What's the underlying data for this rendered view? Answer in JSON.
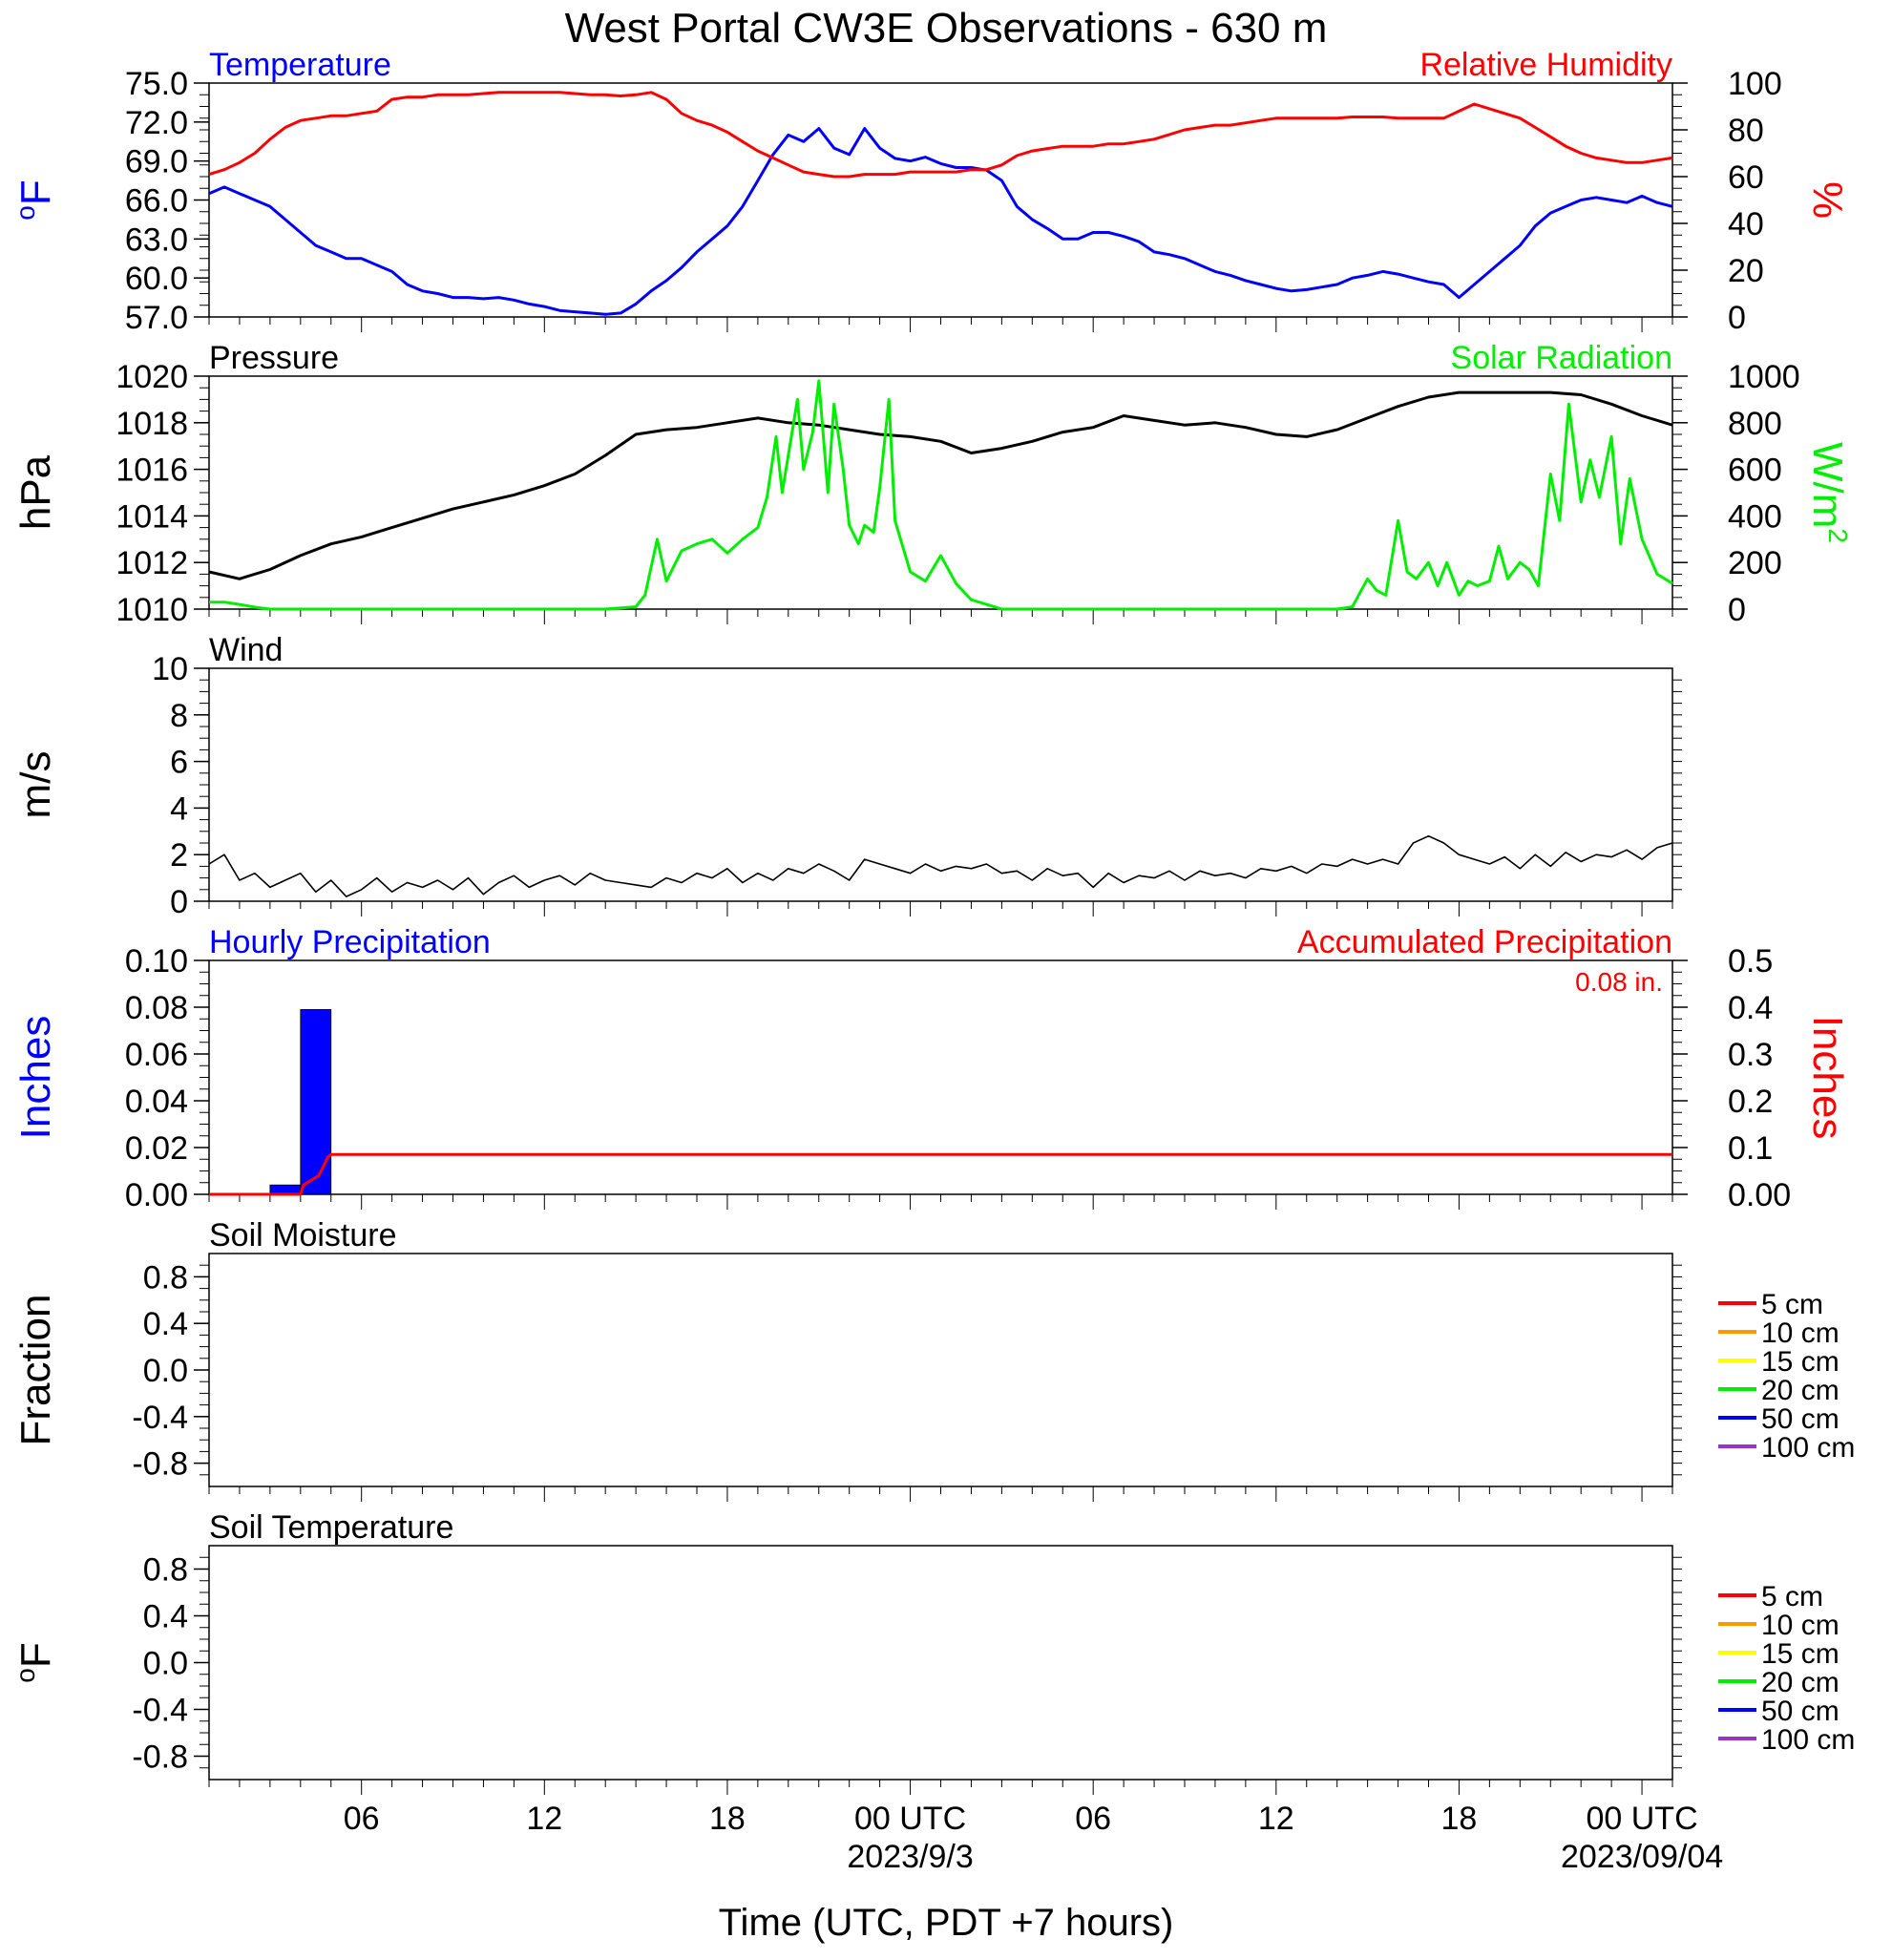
{
  "title": "West Portal CW3E Observations - 630 m",
  "colors": {
    "blue": "#0000ff",
    "red": "#ff0000",
    "green": "#00ee00",
    "black": "#000000",
    "orange": "#ff9900",
    "yellow": "#ffff00",
    "purple": "#9933cc"
  },
  "x_axis": {
    "label": "Time (UTC, PDT +7 hours)",
    "range_hours": [
      0,
      48
    ],
    "ticks": [
      {
        "h": 5,
        "label": "06",
        "sub": ""
      },
      {
        "h": 11,
        "label": "12",
        "sub": ""
      },
      {
        "h": 17,
        "label": "18",
        "sub": ""
      },
      {
        "h": 23,
        "label": "00 UTC",
        "sub": "2023/9/3"
      },
      {
        "h": 29,
        "label": "06",
        "sub": ""
      },
      {
        "h": 35,
        "label": "12",
        "sub": ""
      },
      {
        "h": 41,
        "label": "18",
        "sub": ""
      },
      {
        "h": 47,
        "label": "00 UTC",
        "sub": "2023/09/04"
      }
    ]
  },
  "chart_data": [
    {
      "type": "line",
      "left_title": "Temperature",
      "right_title": "Relative Humidity",
      "ylabel_left": "oF",
      "ylabel_right": "%",
      "ylim_left": [
        57,
        75
      ],
      "ylim_right": [
        0,
        100
      ],
      "yticks_left": [
        "75.0",
        "72.0",
        "69.0",
        "66.0",
        "63.0",
        "60.0",
        "57.0"
      ],
      "yticks_right": [
        "100",
        "80",
        "60",
        "40",
        "20",
        "0"
      ],
      "series": [
        {
          "name": "Temperature",
          "axis": "left",
          "color": "#0000ff",
          "x": [
            0,
            0.5,
            1,
            1.5,
            2,
            2.5,
            3,
            3.5,
            4,
            4.5,
            5,
            5.5,
            6,
            6.5,
            7,
            7.5,
            8,
            8.5,
            9,
            9.5,
            10,
            10.5,
            11,
            11.5,
            12,
            12.5,
            13,
            13.5,
            14,
            14.5,
            15,
            15.5,
            16,
            16.5,
            17,
            17.5,
            18,
            18.5,
            19,
            19.5,
            20,
            20.5,
            21,
            21.5,
            22,
            22.5,
            23,
            23.5,
            24,
            24.5,
            25,
            25.5,
            26,
            26.5,
            27,
            27.5,
            28,
            28.5,
            29,
            29.5,
            30,
            30.5,
            31,
            31.5,
            32,
            32.5,
            33,
            33.5,
            34,
            34.5,
            35,
            35.5,
            36,
            36.5,
            37,
            37.5,
            38,
            38.5,
            39,
            39.5,
            40,
            40.5,
            41,
            41.5,
            42,
            42.5,
            43,
            43.5,
            44,
            44.5,
            45,
            45.5,
            46,
            46.5,
            47,
            47.5,
            48
          ],
          "values": [
            66.5,
            67,
            66.5,
            66,
            65.5,
            64.5,
            63.5,
            62.5,
            62,
            61.5,
            61.5,
            61,
            60.5,
            59.5,
            59,
            58.8,
            58.5,
            58.5,
            58.4,
            58.5,
            58.3,
            58,
            57.8,
            57.5,
            57.4,
            57.3,
            57.2,
            57.3,
            58,
            59,
            59.8,
            60.8,
            62,
            63,
            64,
            65.5,
            67.5,
            69.5,
            71,
            70.5,
            71.5,
            70,
            69.5,
            71.5,
            70,
            69.2,
            69,
            69.3,
            68.8,
            68.5,
            68.5,
            68.3,
            67.5,
            65.5,
            64.5,
            63.8,
            63,
            63,
            63.5,
            63.5,
            63.2,
            62.8,
            62,
            61.8,
            61.5,
            61,
            60.5,
            60.2,
            59.8,
            59.5,
            59.2,
            59,
            59.1,
            59.3,
            59.5,
            60,
            60.2,
            60.5,
            60.3,
            60,
            59.7,
            59.5,
            58.5,
            59.5,
            60.5,
            61.5,
            62.5,
            64,
            65,
            65.5,
            66,
            66.2,
            66,
            65.8,
            66.3,
            65.8,
            65.5
          ]
        },
        {
          "name": "Relative Humidity",
          "axis": "right",
          "color": "#ff0000",
          "x": [
            0,
            0.5,
            1,
            1.5,
            2,
            2.5,
            3,
            3.5,
            4,
            4.5,
            5,
            5.5,
            6,
            6.5,
            7,
            7.5,
            8,
            8.5,
            9,
            9.5,
            10,
            10.5,
            11,
            11.5,
            12,
            12.5,
            13,
            13.5,
            14,
            14.5,
            15,
            15.5,
            16,
            16.5,
            17,
            17.5,
            18,
            18.5,
            19,
            19.5,
            20,
            20.5,
            21,
            21.5,
            22,
            22.5,
            23,
            23.5,
            24,
            24.5,
            25,
            25.5,
            26,
            26.5,
            27,
            27.5,
            28,
            28.5,
            29,
            29.5,
            30,
            30.5,
            31,
            31.5,
            32,
            32.5,
            33,
            33.5,
            34,
            34.5,
            35,
            35.5,
            36,
            36.5,
            37,
            37.5,
            38,
            38.5,
            39,
            39.5,
            40,
            40.5,
            41,
            41.5,
            42,
            42.5,
            43,
            43.5,
            44,
            44.5,
            45,
            45.5,
            46,
            46.5,
            47,
            47.5,
            48
          ],
          "values": [
            61,
            63,
            66,
            70,
            76,
            81,
            84,
            85,
            86,
            86,
            87,
            88,
            93,
            94,
            94,
            95,
            95,
            95,
            95.5,
            96,
            96,
            96,
            96,
            96,
            95.5,
            95,
            95,
            94.5,
            95,
            96,
            93,
            87,
            84,
            82,
            79,
            75,
            71,
            68,
            65,
            62,
            61,
            60,
            60,
            61,
            61,
            61,
            62,
            62,
            62,
            62,
            63,
            63,
            65,
            69,
            71,
            72,
            73,
            73,
            73,
            74,
            74,
            75,
            76,
            78,
            80,
            81,
            82,
            82,
            83,
            84,
            85,
            85,
            85,
            85,
            85,
            85.5,
            85.5,
            85.5,
            85,
            85,
            85,
            85,
            88,
            91,
            89,
            87,
            85,
            81,
            77,
            73,
            70,
            68,
            67,
            66,
            66,
            67,
            68
          ]
        }
      ]
    },
    {
      "type": "line",
      "left_title": "Pressure",
      "right_title": "Solar Radiation",
      "ylabel_left": "hPa",
      "ylabel_right": "W/m2",
      "ylim_left": [
        1010,
        1020
      ],
      "ylim_right": [
        0,
        1000
      ],
      "yticks_left": [
        "1020",
        "1018",
        "1016",
        "1014",
        "1012",
        "1010"
      ],
      "yticks_right": [
        "1000",
        "800",
        "600",
        "400",
        "200",
        "0"
      ],
      "series": [
        {
          "name": "Pressure",
          "axis": "left",
          "color": "#000000",
          "x": [
            0,
            1,
            2,
            3,
            4,
            5,
            6,
            7,
            8,
            9,
            10,
            11,
            12,
            13,
            14,
            15,
            16,
            17,
            18,
            19,
            20,
            21,
            22,
            23,
            24,
            25,
            26,
            27,
            28,
            29,
            30,
            31,
            32,
            33,
            34,
            35,
            36,
            37,
            38,
            39,
            40,
            41,
            42,
            43,
            44,
            45,
            46,
            47,
            48
          ],
          "values": [
            1011.6,
            1011.3,
            1011.7,
            1012.3,
            1012.8,
            1013.1,
            1013.5,
            1013.9,
            1014.3,
            1014.6,
            1014.9,
            1015.3,
            1015.8,
            1016.6,
            1017.5,
            1017.7,
            1017.8,
            1018,
            1018.2,
            1018,
            1017.9,
            1017.7,
            1017.5,
            1017.4,
            1017.2,
            1016.7,
            1016.9,
            1017.2,
            1017.6,
            1017.8,
            1018.3,
            1018.1,
            1017.9,
            1018,
            1017.8,
            1017.5,
            1017.4,
            1017.7,
            1018.2,
            1018.7,
            1019.1,
            1019.3,
            1019.3,
            1019.3,
            1019.3,
            1019.2,
            1018.8,
            1018.3,
            1017.9
          ]
        },
        {
          "name": "Solar Radiation",
          "axis": "right",
          "color": "#00ee00",
          "x": [
            0,
            0.5,
            1,
            1.5,
            2,
            3,
            4,
            6,
            8,
            10,
            12,
            13,
            14,
            14.3,
            14.7,
            15,
            15.5,
            16,
            16.5,
            17,
            17.5,
            18,
            18.3,
            18.6,
            18.8,
            19,
            19.3,
            19.5,
            19.8,
            20,
            20.3,
            20.5,
            20.8,
            21,
            21.3,
            21.5,
            21.8,
            22,
            22.3,
            22.5,
            23,
            23.5,
            24,
            24.5,
            25,
            25.5,
            26,
            28,
            30,
            32,
            34,
            36,
            37,
            37.5,
            38,
            38.3,
            38.6,
            39,
            39.3,
            39.6,
            40,
            40.3,
            40.6,
            41,
            41.3,
            41.6,
            42,
            42.3,
            42.6,
            43,
            43.3,
            43.6,
            44,
            44.3,
            44.6,
            45,
            45.3,
            45.6,
            46,
            46.3,
            46.6,
            47,
            47.5,
            48
          ],
          "values": [
            30,
            30,
            20,
            8,
            0,
            0,
            0,
            0,
            0,
            0,
            0,
            0,
            10,
            60,
            300,
            120,
            250,
            280,
            300,
            240,
            300,
            350,
            480,
            740,
            500,
            660,
            900,
            600,
            760,
            980,
            500,
            880,
            600,
            360,
            280,
            360,
            330,
            520,
            900,
            380,
            160,
            120,
            230,
            110,
            40,
            20,
            0,
            0,
            0,
            0,
            0,
            0,
            0,
            10,
            130,
            80,
            60,
            380,
            160,
            130,
            200,
            100,
            200,
            60,
            120,
            100,
            120,
            270,
            130,
            200,
            170,
            100,
            580,
            380,
            880,
            460,
            640,
            480,
            740,
            280,
            560,
            300,
            150,
            110
          ]
        }
      ]
    },
    {
      "type": "line",
      "left_title": "Wind",
      "ylabel_left": "m/s",
      "ylim_left": [
        0,
        10
      ],
      "yticks_left": [
        "10",
        "8",
        "6",
        "4",
        "2",
        "0"
      ],
      "series": [
        {
          "name": "Wind",
          "axis": "left",
          "color": "#000000",
          "x": [
            0,
            0.5,
            1,
            1.5,
            2,
            2.5,
            3,
            3.5,
            4,
            4.5,
            5,
            5.5,
            6,
            6.5,
            7,
            7.5,
            8,
            8.5,
            9,
            9.5,
            10,
            10.5,
            11,
            11.5,
            12,
            12.5,
            13,
            13.5,
            14,
            14.5,
            15,
            15.5,
            16,
            16.5,
            17,
            17.5,
            18,
            18.5,
            19,
            19.5,
            20,
            20.5,
            21,
            21.5,
            22,
            22.5,
            23,
            23.5,
            24,
            24.5,
            25,
            25.5,
            26,
            26.5,
            27,
            27.5,
            28,
            28.5,
            29,
            29.5,
            30,
            30.5,
            31,
            31.5,
            32,
            32.5,
            33,
            33.5,
            34,
            34.5,
            35,
            35.5,
            36,
            36.5,
            37,
            37.5,
            38,
            38.5,
            39,
            39.5,
            40,
            40.5,
            41,
            41.5,
            42,
            42.5,
            43,
            43.5,
            44,
            44.5,
            45,
            45.5,
            46,
            46.5,
            47,
            47.5,
            48
          ],
          "values": [
            1.6,
            2.0,
            0.9,
            1.2,
            0.6,
            0.9,
            1.2,
            0.4,
            0.9,
            0.2,
            0.5,
            1.0,
            0.4,
            0.8,
            0.6,
            0.9,
            0.5,
            1.0,
            0.3,
            0.8,
            1.1,
            0.6,
            0.9,
            1.1,
            0.7,
            1.2,
            0.9,
            0.8,
            0.7,
            0.6,
            1.0,
            0.8,
            1.2,
            1.0,
            1.4,
            0.8,
            1.2,
            0.9,
            1.4,
            1.2,
            1.6,
            1.3,
            0.9,
            1.8,
            1.6,
            1.4,
            1.2,
            1.6,
            1.3,
            1.5,
            1.4,
            1.6,
            1.2,
            1.3,
            0.9,
            1.4,
            1.1,
            1.2,
            0.6,
            1.2,
            0.8,
            1.1,
            1.0,
            1.3,
            0.9,
            1.3,
            1.1,
            1.2,
            1.0,
            1.4,
            1.3,
            1.5,
            1.2,
            1.6,
            1.5,
            1.8,
            1.6,
            1.8,
            1.6,
            2.5,
            2.8,
            2.5,
            2.0,
            1.8,
            1.6,
            1.9,
            1.4,
            2.0,
            1.5,
            2.1,
            1.7,
            2.0,
            1.9,
            2.2,
            1.8,
            2.3,
            2.5
          ]
        }
      ]
    },
    {
      "type": "bar",
      "left_title": "Hourly Precipitation",
      "right_title": "Accumulated Precipitation",
      "annotation": "0.08 in.",
      "ylabel_left": "Inches",
      "ylabel_right": "Inches",
      "ylim_left": [
        0,
        0.1
      ],
      "ylim_right": [
        0,
        0.5
      ],
      "yticks_left": [
        "0.10",
        "0.08",
        "0.06",
        "0.04",
        "0.02",
        "0.00"
      ],
      "yticks_right": [
        "0.5",
        "0.4",
        "0.3",
        "0.2",
        "0.1",
        "0.00"
      ],
      "series": [
        {
          "name": "Hourly Precipitation",
          "axis": "left",
          "color": "#0000ff",
          "bars": [
            {
              "h0": 2,
              "h1": 3,
              "value": 0.004
            },
            {
              "h0": 3,
              "h1": 4,
              "value": 0.079
            }
          ]
        },
        {
          "name": "Accumulated Precipitation",
          "axis": "right",
          "color": "#ff0000",
          "x": [
            0,
            3,
            3.1,
            3.6,
            3.9,
            4.0,
            48
          ],
          "values": [
            0,
            0,
            0.02,
            0.04,
            0.08,
            0.085,
            0.085
          ]
        }
      ]
    },
    {
      "type": "line",
      "left_title": "Soil Moisture",
      "ylabel_left": "Fraction",
      "ylim_left": [
        -1,
        1
      ],
      "yticks_left": [
        "0.8",
        "0.4",
        "0.0",
        "-0.4",
        "-0.8"
      ],
      "legend": [
        "5 cm",
        "10 cm",
        "15 cm",
        "20 cm",
        "50 cm",
        "100 cm"
      ],
      "series": []
    },
    {
      "type": "line",
      "left_title": "Soil Temperature",
      "ylabel_left": "oF",
      "ylim_left": [
        -1,
        1
      ],
      "yticks_left": [
        "0.8",
        "0.4",
        "0.0",
        "-0.4",
        "-0.8"
      ],
      "legend": [
        "5 cm",
        "10 cm",
        "15 cm",
        "20 cm",
        "50 cm",
        "100 cm"
      ],
      "series": []
    }
  ],
  "legend_colors": [
    "#ff0000",
    "#ff9900",
    "#ffff00",
    "#00ee00",
    "#0000ff",
    "#9933cc"
  ]
}
